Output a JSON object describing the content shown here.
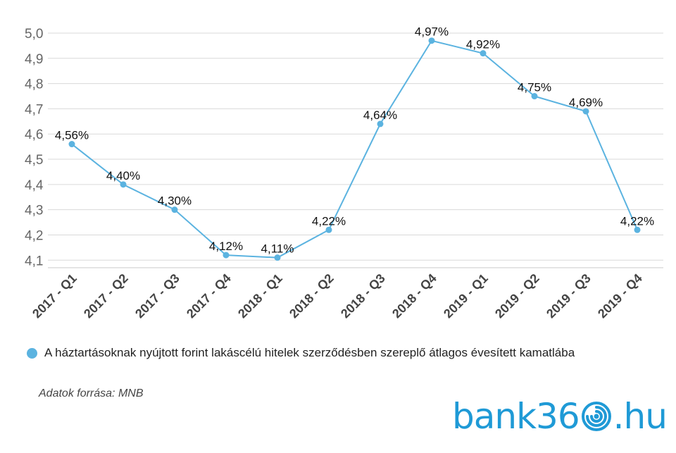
{
  "chart_data": {
    "type": "line",
    "categories": [
      "2017 - Q1",
      "2017 - Q2",
      "2017 - Q3",
      "2017 - Q4",
      "2018 - Q1",
      "2018 - Q2",
      "2018 - Q3",
      "2018 - Q4",
      "2019 - Q1",
      "2019 - Q2",
      "2019 - Q3",
      "2019 - Q4"
    ],
    "series": [
      {
        "name": "A háztartásoknak nyújtott forint lakáscélú hitelek szerződésben szereplő átlagos évesített kamatlába",
        "values": [
          4.56,
          4.4,
          4.3,
          4.12,
          4.11,
          4.22,
          4.64,
          4.97,
          4.92,
          4.75,
          4.69,
          4.22
        ],
        "labels": [
          "4,56%",
          "4,40%",
          "4,30%",
          "4,12%",
          "4,11%",
          "4,22%",
          "4,64%",
          "4,97%",
          "4,92%",
          "4,75%",
          "4,69%",
          "4,22%"
        ]
      }
    ],
    "yticks": [
      "4,1",
      "4,2",
      "4,3",
      "4,4",
      "4,5",
      "4,6",
      "4,7",
      "4,8",
      "4,9",
      "5,0"
    ],
    "ylim": [
      4.07,
      5.0
    ],
    "grid": true,
    "legend_position": "bottom",
    "line_color": "#5bb3e0",
    "grid_color": "#d9d9d9"
  },
  "legend": {
    "label": "A háztartásoknak nyújtott forint lakáscélú hitelek szerződésben szereplő átlagos évesített kamatlába",
    "color": "#5bb3e0"
  },
  "source": "Adatok forrása: MNB",
  "logo": {
    "before": "bank36",
    "after": ".hu",
    "color": "#1f9ad6"
  }
}
